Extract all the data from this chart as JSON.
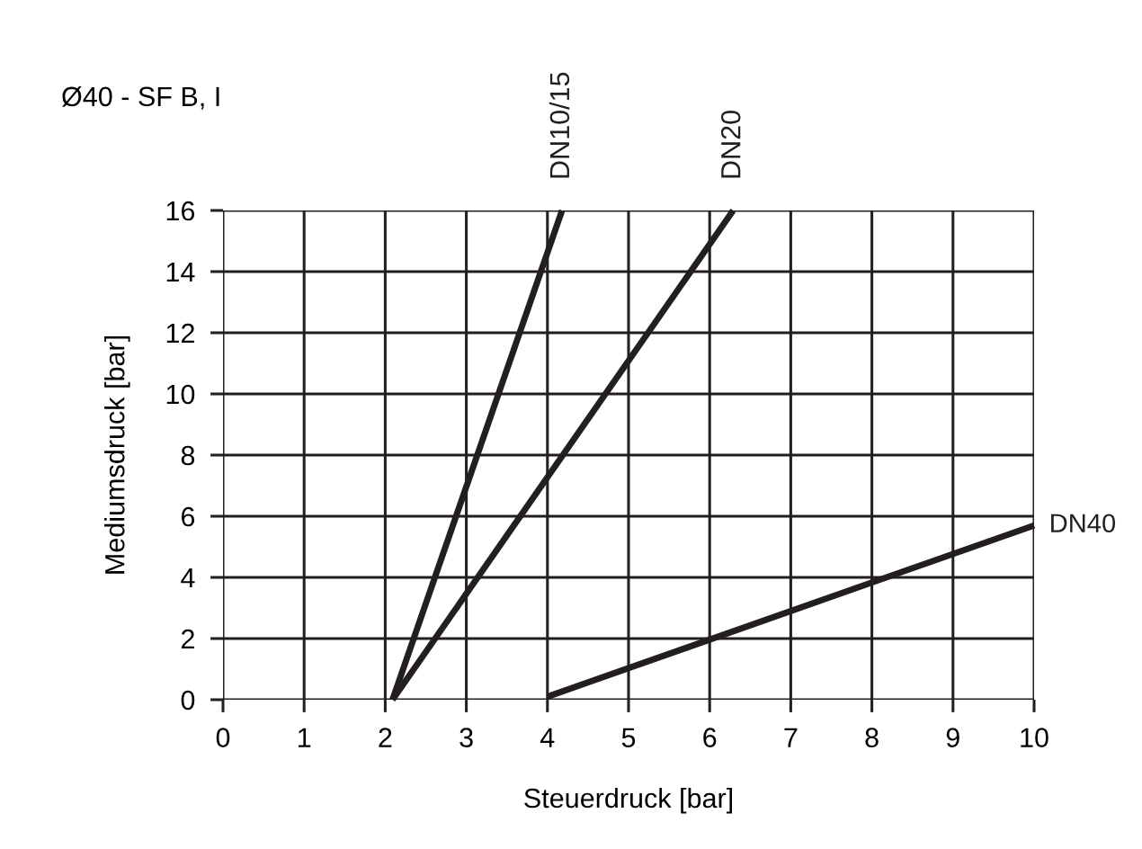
{
  "chart_data": {
    "type": "line",
    "title": "Ø40 - SF B, I",
    "xlabel": "Steuerdruck [bar]",
    "ylabel": "Mediumsdruck [bar]",
    "xlim": [
      0,
      10
    ],
    "ylim": [
      0,
      16
    ],
    "xticks": [
      0,
      1,
      2,
      3,
      4,
      5,
      6,
      7,
      8,
      9,
      10
    ],
    "yticks": [
      0,
      2,
      4,
      6,
      8,
      10,
      12,
      14,
      16
    ],
    "grid": true,
    "marker": "none",
    "line_style": "solid",
    "series": [
      {
        "name": "DN10/15",
        "color": "#231f20",
        "x": [
          2.09,
          4.18
        ],
        "values": [
          0,
          16
        ]
      },
      {
        "name": "DN20",
        "color": "#231f20",
        "x": [
          2.09,
          6.29
        ],
        "values": [
          0,
          16
        ]
      },
      {
        "name": "DN40",
        "color": "#231f20",
        "x": [
          4.0,
          10
        ],
        "values": [
          0.1,
          5.7
        ]
      }
    ]
  }
}
